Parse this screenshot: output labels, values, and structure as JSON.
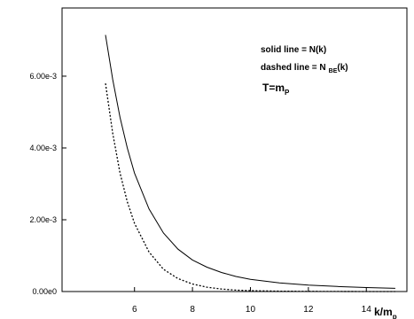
{
  "chart_data": {
    "type": "line",
    "xlabel_main": "k/m",
    "xlabel_sub": "p",
    "xlim": [
      3.5,
      15.4
    ],
    "ylim": [
      0,
      0.0079
    ],
    "x_ticks": [
      6,
      8,
      10,
      12,
      14
    ],
    "x_tick_labels": [
      "6",
      "8",
      "10",
      "12",
      "14"
    ],
    "y_ticks": [
      0,
      0.002,
      0.004,
      0.006
    ],
    "y_tick_labels": [
      "0.00e0",
      "2.00e-3",
      "4.00e-3",
      "6.00e-3"
    ],
    "grid": false,
    "legend_position": "top-right",
    "annotations": {
      "solid": "solid line = N(k)",
      "dashed_main": "dashed line = N",
      "dashed_sub": "BE",
      "dashed_tail": "(k)",
      "temp_main": "T=m",
      "temp_sub": "P"
    },
    "series": [
      {
        "style": "solid",
        "x": [
          5.0,
          5.25,
          5.5,
          5.75,
          6.0,
          6.5,
          7.0,
          7.5,
          8.0,
          8.5,
          9.0,
          9.5,
          10.0,
          11.0,
          12.0,
          13.0,
          14.0,
          15.0
        ],
        "y": [
          0.00715,
          0.0059,
          0.00485,
          0.004,
          0.0033,
          0.0023,
          0.00163,
          0.00118,
          0.00088,
          0.00068,
          0.00053,
          0.00042,
          0.00034,
          0.00024,
          0.00018,
          0.00014,
          0.00011,
          9e-05
        ]
      },
      {
        "style": "dashed",
        "x": [
          5.0,
          5.25,
          5.5,
          5.75,
          6.0,
          6.5,
          7.0,
          7.5,
          8.0,
          8.5,
          9.0,
          9.5,
          10.0,
          11.0,
          12.0,
          13.0,
          14.0,
          15.0
        ],
        "y": [
          0.0058,
          0.0044,
          0.0033,
          0.0025,
          0.0019,
          0.0011,
          0.00062,
          0.00036,
          0.00021,
          0.00012,
          7e-05,
          4e-05,
          2.5e-05,
          1e-05,
          4e-06,
          2e-06,
          1e-06,
          0.0
        ]
      }
    ]
  }
}
